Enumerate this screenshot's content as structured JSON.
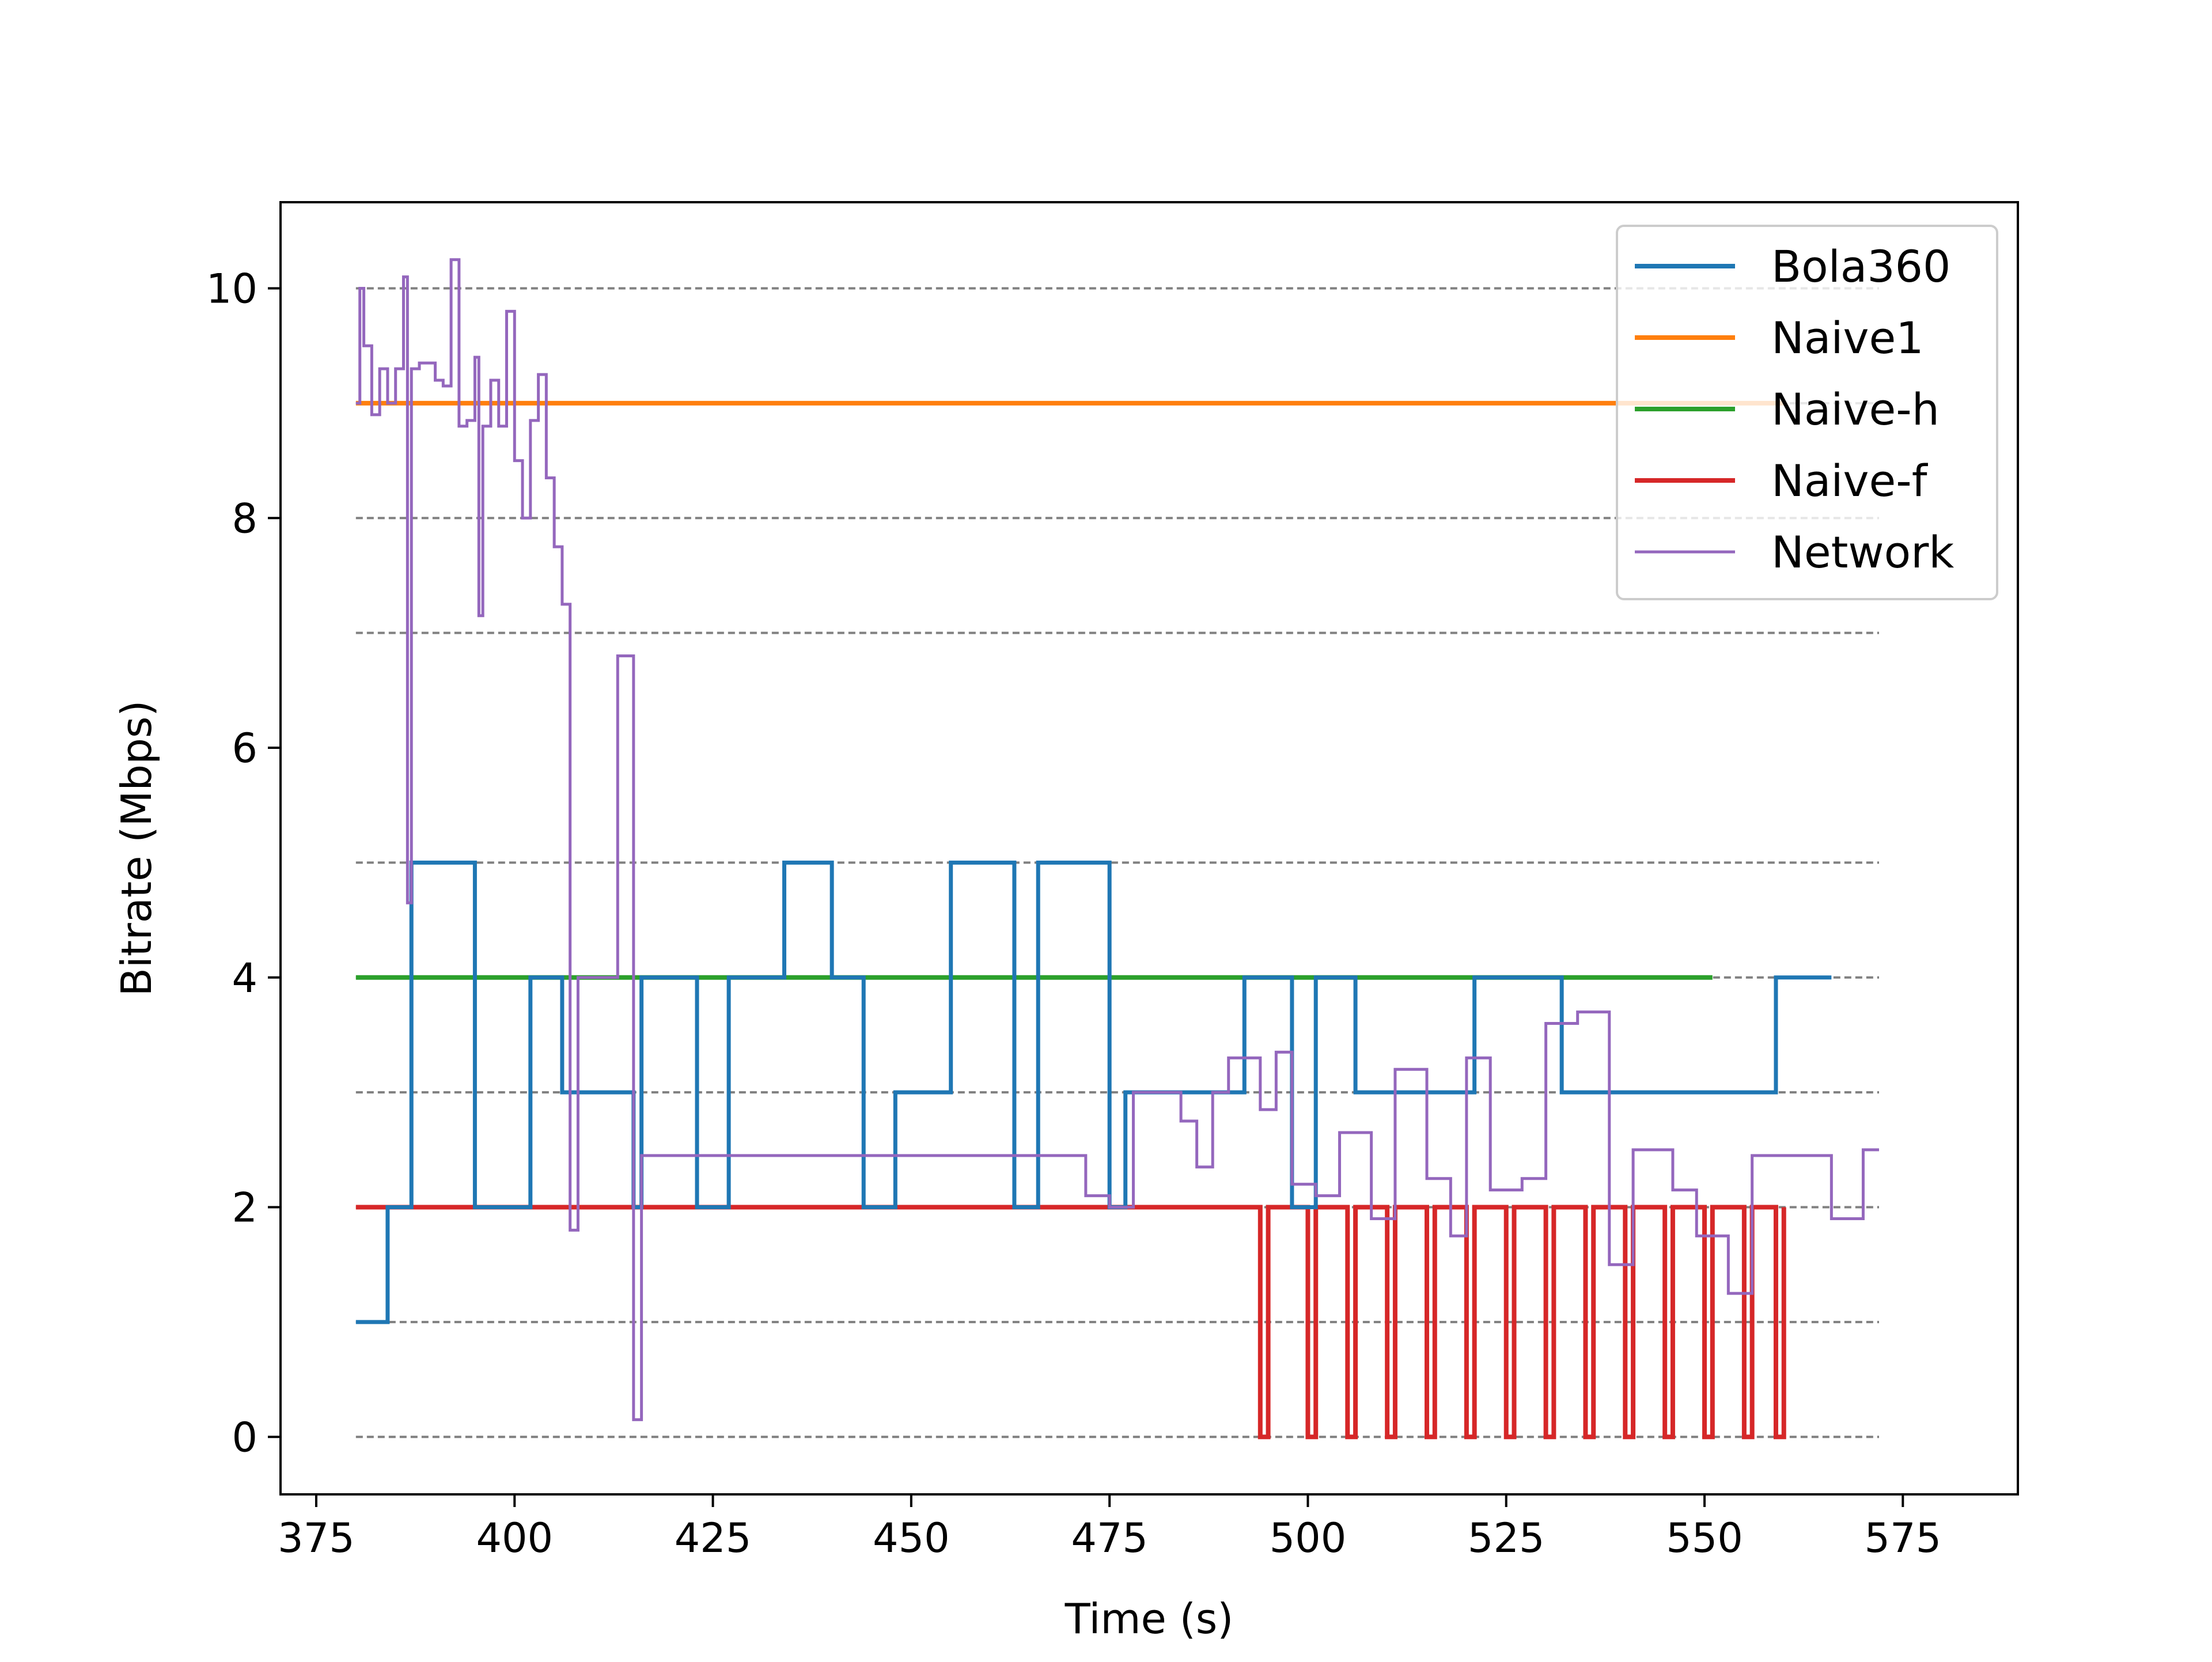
{
  "chart_data": {
    "type": "line",
    "title": "",
    "xlabel": "Time (s)",
    "ylabel": "Bitrate (Mbps)",
    "xlim": [
      370.5,
      589.5
    ],
    "ylim": [
      -0.5,
      10.75
    ],
    "xticks": [
      375,
      400,
      425,
      450,
      475,
      500,
      525,
      550,
      575
    ],
    "yticks": [
      0,
      2,
      4,
      6,
      8,
      10
    ],
    "hgrid": {
      "values": [
        0,
        1,
        2,
        3,
        4,
        5,
        7,
        8,
        9,
        10
      ],
      "x_range": [
        380,
        572
      ],
      "style": "dashed",
      "color": "#808080"
    },
    "legend": {
      "position": "top-right"
    },
    "series": [
      {
        "name": "Bola360",
        "color": "#1f77b4",
        "step": true,
        "x": [
          380,
          384,
          387,
          395,
          402,
          406,
          415,
          416,
          423,
          427,
          434,
          440,
          444,
          448,
          455,
          463,
          466,
          475,
          477,
          492,
          498,
          501,
          506,
          521,
          532,
          559,
          566
        ],
        "y": [
          1,
          2,
          5,
          2,
          4,
          3,
          2,
          4,
          2,
          4,
          5,
          4,
          2,
          3,
          5,
          2,
          5,
          2,
          3,
          4,
          2,
          4,
          3,
          4,
          3,
          4,
          4
        ]
      },
      {
        "name": "Naive1",
        "color": "#ff7f0e",
        "step": true,
        "x": [
          380,
          560
        ],
        "y": [
          9,
          9
        ]
      },
      {
        "name": "Naive-h",
        "color": "#2ca02c",
        "step": true,
        "x": [
          380,
          551
        ],
        "y": [
          4,
          4
        ]
      },
      {
        "name": "Naive-f",
        "color": "#d62728",
        "step": true,
        "x": [
          380,
          494,
          495,
          500,
          501,
          505,
          506,
          510,
          511,
          515,
          516,
          520,
          521,
          525,
          526,
          530,
          531,
          535,
          536,
          540,
          541,
          545,
          546,
          550,
          551,
          555,
          556,
          559,
          560
        ],
        "y": [
          2,
          0,
          2,
          0,
          2,
          0,
          2,
          0,
          2,
          0,
          2,
          0,
          2,
          0,
          2,
          0,
          2,
          0,
          2,
          0,
          2,
          0,
          2,
          0,
          2,
          0,
          2,
          0,
          2
        ]
      },
      {
        "name": "Network",
        "color": "#9467bd",
        "step": true,
        "x": [
          380,
          380.5,
          381,
          382,
          383,
          384,
          385,
          386,
          386.5,
          387,
          388,
          390,
          391,
          392,
          393,
          394,
          395,
          395.5,
          396,
          397,
          398,
          399,
          400,
          401,
          402,
          403,
          404,
          405,
          406,
          407,
          408,
          409,
          410,
          413,
          415,
          416,
          417,
          472,
          475,
          478,
          480,
          484,
          486,
          488,
          490,
          494,
          496,
          498,
          501,
          504,
          508,
          511,
          515,
          518,
          520,
          523,
          527,
          530,
          534,
          538,
          541,
          546,
          549,
          553,
          556,
          560,
          566,
          570,
          572
        ],
        "y": [
          9,
          10,
          9.5,
          8.9,
          9.3,
          9,
          9.3,
          10.1,
          4.65,
          9.3,
          9.35,
          9.2,
          9.15,
          10.25,
          8.8,
          8.85,
          9.4,
          7.15,
          8.8,
          9.2,
          8.8,
          9.8,
          8.5,
          8.0,
          8.85,
          9.25,
          8.35,
          7.75,
          7.25,
          1.8,
          4.0,
          4.0,
          4.0,
          6.8,
          0.15,
          2.45,
          2.45,
          2.1,
          2.0,
          3.0,
          3.0,
          2.75,
          2.35,
          3.0,
          3.3,
          2.85,
          3.35,
          2.2,
          2.1,
          2.65,
          1.9,
          3.2,
          2.25,
          1.75,
          3.3,
          2.15,
          2.25,
          3.6,
          3.7,
          1.5,
          2.5,
          2.15,
          1.75,
          1.25,
          2.45,
          2.45,
          1.9,
          2.5,
          2.5
        ]
      }
    ]
  }
}
